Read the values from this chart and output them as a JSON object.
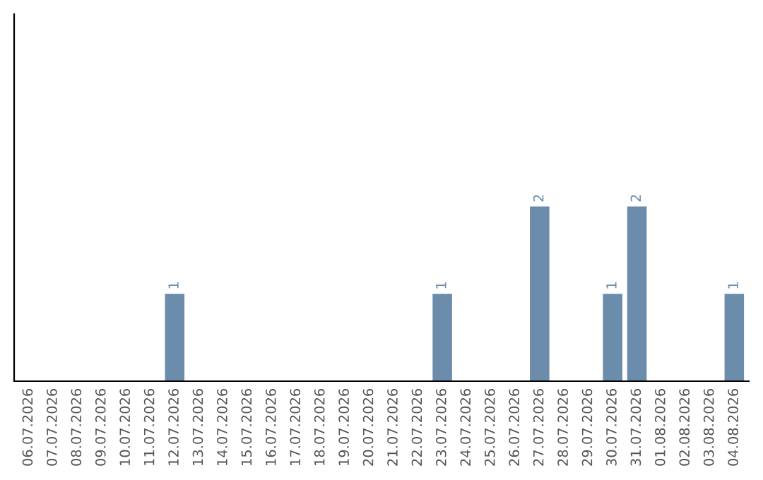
{
  "chart_data": {
    "type": "bar",
    "categories": [
      "06.07.2026",
      "07.07.2026",
      "08.07.2026",
      "09.07.2026",
      "10.07.2026",
      "11.07.2026",
      "12.07.2026",
      "13.07.2026",
      "14.07.2026",
      "15.07.2026",
      "16.07.2026",
      "17.07.2026",
      "18.07.2026",
      "19.07.2026",
      "20.07.2026",
      "21.07.2026",
      "22.07.2026",
      "23.07.2026",
      "24.07.2026",
      "25.07.2026",
      "26.07.2026",
      "27.07.2026",
      "28.07.2026",
      "29.07.2026",
      "30.07.2026",
      "31.07.2026",
      "01.08.2026",
      "02.08.2026",
      "03.08.2026",
      "04.08.2026"
    ],
    "values": [
      0,
      0,
      0,
      0,
      0,
      0,
      1,
      0,
      0,
      0,
      0,
      0,
      0,
      0,
      0,
      0,
      0,
      1,
      0,
      0,
      0,
      2,
      0,
      0,
      1,
      2,
      0,
      0,
      0,
      1
    ],
    "value_labels": [
      null,
      null,
      null,
      null,
      null,
      null,
      "1",
      null,
      null,
      null,
      null,
      null,
      null,
      null,
      null,
      null,
      null,
      "1",
      null,
      null,
      null,
      "2",
      null,
      null,
      "1",
      "2",
      null,
      null,
      null,
      "1"
    ],
    "color": "#6b8caa",
    "ylim": [
      0,
      4.2
    ],
    "tick_labels": "x",
    "grid": false,
    "legend": false
  }
}
